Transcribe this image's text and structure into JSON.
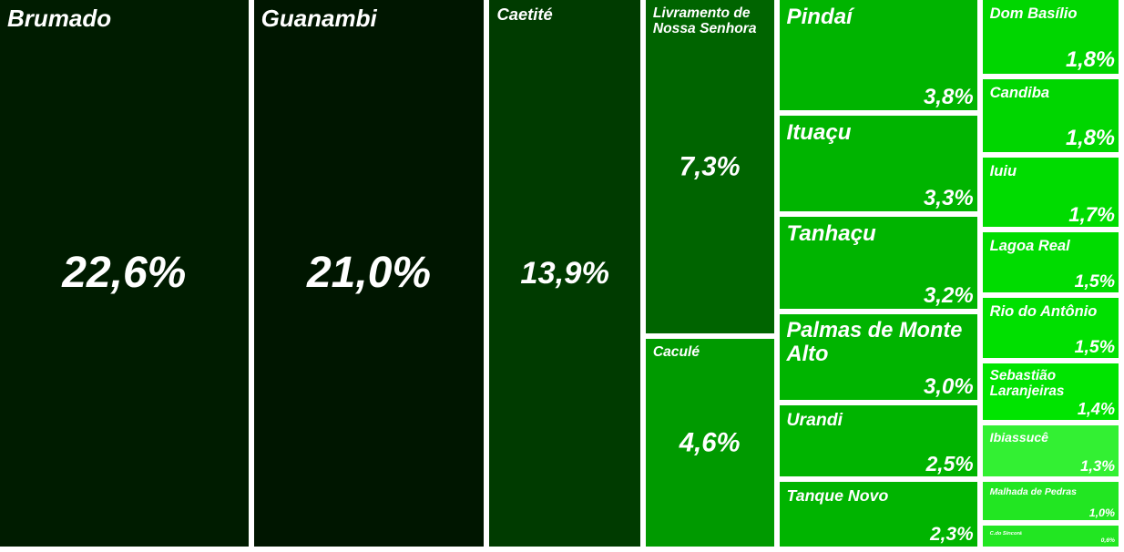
{
  "chart_data": {
    "type": "treemap",
    "categories": [
      "Brumado",
      "Guanambi",
      "Caetité",
      "Livramento de Nossa Senhora",
      "Caculé",
      "Pindaí",
      "Ituaçu",
      "Tanhaçu",
      "Palmas de Monte Alto",
      "Urandi",
      "Tanque Novo",
      "Dom Basílio",
      "Candiba",
      "Iuiu",
      "Lagoa Real",
      "Rio do Antônio",
      "Sebastião Laranjeiras",
      "Ibiassucê",
      "Malhada de Pedras",
      "C.do Sincorá"
    ],
    "values": [
      22.6,
      21.0,
      13.9,
      7.3,
      4.6,
      3.8,
      3.3,
      3.2,
      3.0,
      2.5,
      2.3,
      1.8,
      1.8,
      1.7,
      1.5,
      1.5,
      1.4,
      1.3,
      1.0,
      0.6
    ],
    "value_labels": [
      "22,6%",
      "21,0%",
      "13,9%",
      "7,3%",
      "4,6%",
      "3,8%",
      "3,3%",
      "3,2%",
      "3,0%",
      "2,5%",
      "2,3%",
      "1,8%",
      "1,8%",
      "1,7%",
      "1,5%",
      "1,5%",
      "1,4%",
      "1,3%",
      "1,0%",
      "0,6%"
    ],
    "colors": [
      "#001c00",
      "#001600",
      "#003b00",
      "#006400",
      "#009a00",
      "#00b400",
      "#00b400",
      "#00b400",
      "#00b400",
      "#00b400",
      "#00b400",
      "#00d600",
      "#00d600",
      "#00dc00",
      "#00dc00",
      "#00e000",
      "#00e400",
      "#33f033",
      "#22e622",
      "#22e622"
    ]
  }
}
